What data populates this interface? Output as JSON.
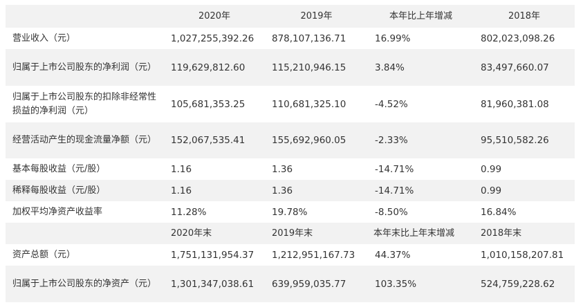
{
  "header": {
    "label": "",
    "col1": "2020年",
    "col2": "2019年",
    "col3": "本年比上年增减",
    "col4": "2018年"
  },
  "rows1": [
    {
      "label": "营业收入（元）",
      "v2020": "1,027,255,392.26",
      "v2019": "878,107,136.71",
      "change": "16.99%",
      "v2018": "802,023,098.26"
    },
    {
      "label": "归属于上市公司股东的净利润（元）",
      "v2020": "119,629,812.60",
      "v2019": "115,210,946.15",
      "change": "3.84%",
      "v2018": "83,497,660.07"
    },
    {
      "label": "归属于上市公司股东的扣除非经常性损益的净利润（元）",
      "v2020": "105,681,353.25",
      "v2019": "110,681,325.10",
      "change": "-4.52%",
      "v2018": "81,960,381.08"
    },
    {
      "label": "经营活动产生的现金流量净额（元）",
      "v2020": "152,067,535.41",
      "v2019": "155,692,960.05",
      "change": "-2.33%",
      "v2018": "95,510,582.26"
    },
    {
      "label": "基本每股收益（元/股）",
      "v2020": "1.16",
      "v2019": "1.36",
      "change": "-14.71%",
      "v2018": "0.99"
    },
    {
      "label": "稀释每股收益（元/股）",
      "v2020": "1.16",
      "v2019": "1.36",
      "change": "-14.71%",
      "v2018": "0.99"
    },
    {
      "label": "加权平均净资产收益率",
      "v2020": "11.28%",
      "v2019": "19.78%",
      "change": "-8.50%",
      "v2018": "16.84%"
    }
  ],
  "subheader": {
    "label": "",
    "col1": "2020年末",
    "col2": "2019年末",
    "col3": "本年末比上年末增减",
    "col4": "2018年末"
  },
  "rows2": [
    {
      "label": "资产总额（元）",
      "v2020": "1,751,131,954.37",
      "v2019": "1,212,951,167.73",
      "change": "44.37%",
      "v2018": "1,010,158,207.81"
    },
    {
      "label": "归属于上市公司股东的净资产（元）",
      "v2020": "1,301,347,038.61",
      "v2019": "639,959,035.77",
      "change": "103.35%",
      "v2018": "524,759,228.62"
    }
  ]
}
